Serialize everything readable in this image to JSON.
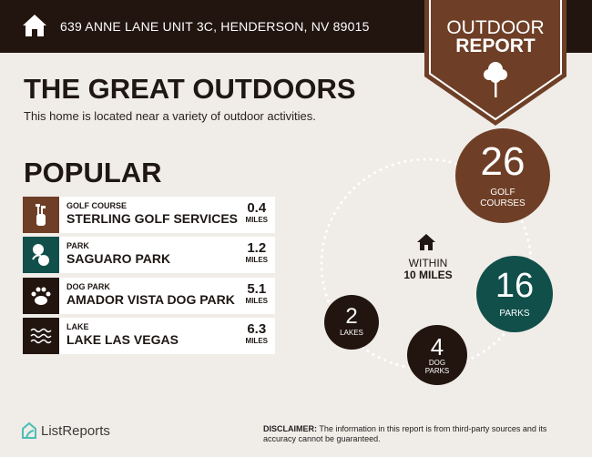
{
  "header": {
    "address": "639 ANNE LANE UNIT 3C, HENDERSON, NV 89015",
    "badge_line1": "OUTDOOR",
    "badge_line2": "REPORT",
    "icon": "home-icon"
  },
  "title": "THE GREAT OUTDOORS",
  "subtitle": "This home is located near a variety of outdoor activities.",
  "popular": {
    "heading": "POPULAR",
    "items": [
      {
        "category": "GOLF COURSE",
        "name": "STERLING GOLF SERVICES",
        "distance": "0.4",
        "unit": "MILES",
        "icon": "golf-bag-icon",
        "color": "#6e3f26"
      },
      {
        "category": "PARK",
        "name": "SAGUARO PARK",
        "distance": "1.2",
        "unit": "MILES",
        "icon": "park-icon",
        "color": "#114f4a"
      },
      {
        "category": "DOG PARK",
        "name": "AMADOR VISTA DOG PARK",
        "distance": "5.1",
        "unit": "MILES",
        "icon": "paw-icon",
        "color": "#22150f"
      },
      {
        "category": "LAKE",
        "name": "LAKE LAS VEGAS",
        "distance": "6.3",
        "unit": "MILES",
        "icon": "waves-icon",
        "color": "#22150f"
      }
    ]
  },
  "radius": {
    "line1": "WITHIN",
    "line2": "10 MILES"
  },
  "counts": [
    {
      "value": "26",
      "label1": "GOLF",
      "label2": "COURSES",
      "color": "#6e3f26"
    },
    {
      "value": "16",
      "label1": "PARKS",
      "label2": "",
      "color": "#114f4a"
    },
    {
      "value": "4",
      "label1": "DOG",
      "label2": "PARKS",
      "color": "#22150f"
    },
    {
      "value": "2",
      "label1": "LAKES",
      "label2": "",
      "color": "#22150f"
    }
  ],
  "footer": {
    "logo": "ListReports",
    "disclaimer_label": "DISCLAIMER:",
    "disclaimer": " The information in this report is from third-party sources and its accuracy cannot be guaranteed."
  }
}
